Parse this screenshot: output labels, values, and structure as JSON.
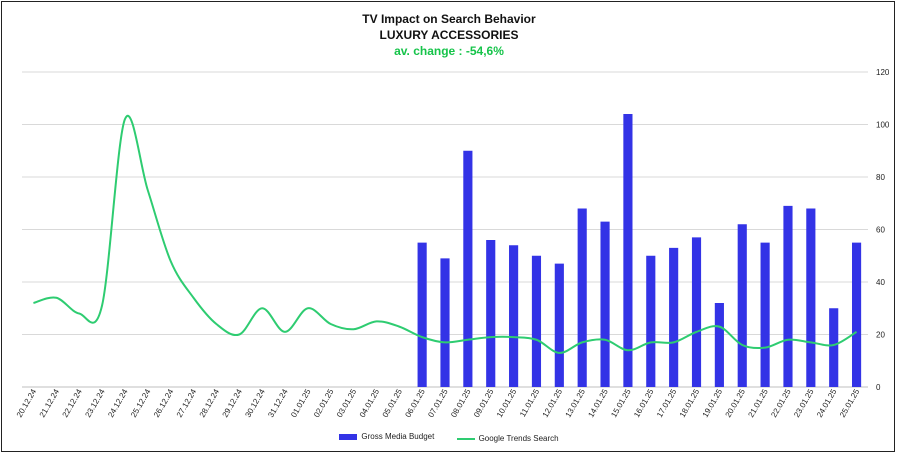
{
  "header": {
    "title": "TV Impact on Search Behavior",
    "subtitle": "LUXURY ACCESSORIES",
    "change": "av. change : -54,6%"
  },
  "colors": {
    "bar": "#3333e6",
    "line": "#2ecc71",
    "change": "#16c44a",
    "grid": "#d9d9d9"
  },
  "chart_data": {
    "type": "bar+line",
    "categories": [
      "20.12.24",
      "21.12.24",
      "22.12.24",
      "23.12.24",
      "24.12.24",
      "25.12.24",
      "26.12.24",
      "27.12.24",
      "28.12.24",
      "29.12.24",
      "30.12.24",
      "31.12.24",
      "01.01.25",
      "02.01.25",
      "03.01.25",
      "04.01.25",
      "05.01.25",
      "06.01.25",
      "07.01.25",
      "08.01.25",
      "09.01.25",
      "10.01.25",
      "11.01.25",
      "12.01.25",
      "13.01.25",
      "14.01.25",
      "15.01.25",
      "16.01.25",
      "17.01.25",
      "18.01.25",
      "19.01.25",
      "20.01.25",
      "21.01.25",
      "22.01.25",
      "23.01.25",
      "24.01.25",
      "25.01.25"
    ],
    "series": [
      {
        "name": "Gross Media Budget",
        "type": "bar",
        "axis": "right",
        "values": [
          0,
          0,
          0,
          0,
          0,
          0,
          0,
          0,
          0,
          0,
          0,
          0,
          0,
          0,
          0,
          0,
          0,
          55,
          49,
          90,
          56,
          54,
          50,
          47,
          68,
          63,
          104,
          50,
          53,
          57,
          32,
          62,
          55,
          69,
          68,
          30,
          55
        ]
      },
      {
        "name": "Google Trends Search",
        "type": "line",
        "axis": "right",
        "values": [
          32,
          34,
          28,
          31,
          102,
          75,
          48,
          34,
          24,
          20,
          30,
          21,
          30,
          24,
          22,
          25,
          23,
          19,
          17,
          18,
          19,
          19,
          18,
          13,
          17,
          18,
          14,
          17,
          17,
          21,
          23,
          16,
          15,
          18,
          17,
          16,
          21
        ]
      }
    ],
    "y_right": {
      "min": 0,
      "max": 120,
      "ticks": [
        0,
        20,
        40,
        60,
        80,
        100,
        120
      ]
    },
    "grid": true,
    "legend": "bottom-center"
  }
}
